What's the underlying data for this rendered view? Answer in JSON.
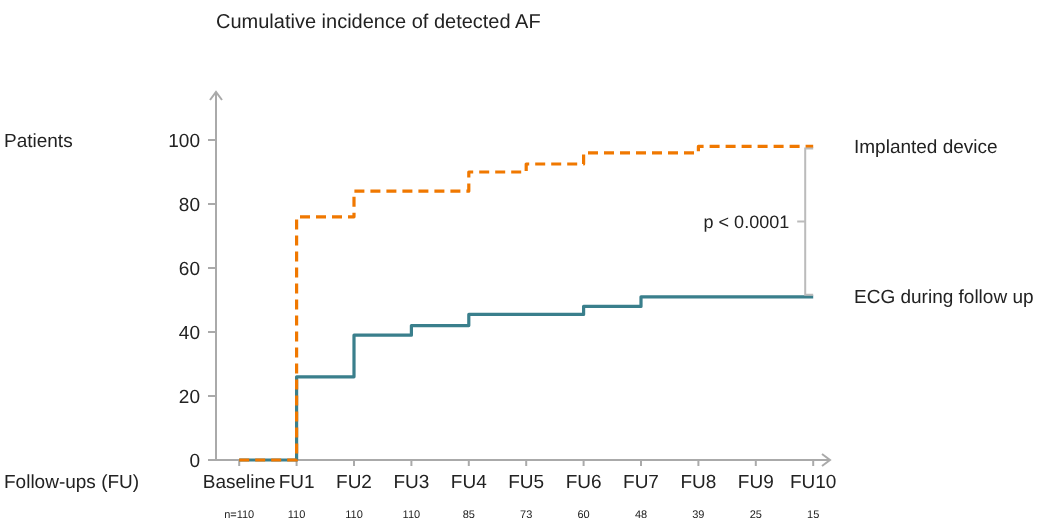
{
  "chart_data": {
    "type": "step",
    "title": "Cumulative incidence of detected AF",
    "xlabel": "Follow-ups (FU)",
    "categories": [
      "Baseline",
      "FU1",
      "FU2",
      "FU3",
      "FU4",
      "FU5",
      "FU6",
      "FU7",
      "FU8",
      "FU9",
      "FU10"
    ],
    "ylim": [
      0,
      115
    ],
    "yticks": [
      0,
      20,
      40,
      60,
      80,
      100
    ],
    "series": [
      {
        "name": "Implanted device",
        "color": "#f07800",
        "line_style": "dashed",
        "values": [
          0,
          76,
          84,
          84,
          90,
          92.5,
          96,
          96,
          98,
          98,
          98
        ]
      },
      {
        "name": "ECG during follow up",
        "color": "#3a7f8c",
        "line_style": "solid",
        "values": [
          0,
          26,
          39,
          42,
          45.5,
          45.5,
          48,
          51,
          51,
          51,
          51
        ]
      }
    ],
    "annotations": [
      "Patients",
      "p < 0.0001",
      "n=110",
      "110",
      "110",
      "110",
      "85",
      "73",
      "60",
      "48",
      "39",
      "25",
      "15"
    ]
  }
}
